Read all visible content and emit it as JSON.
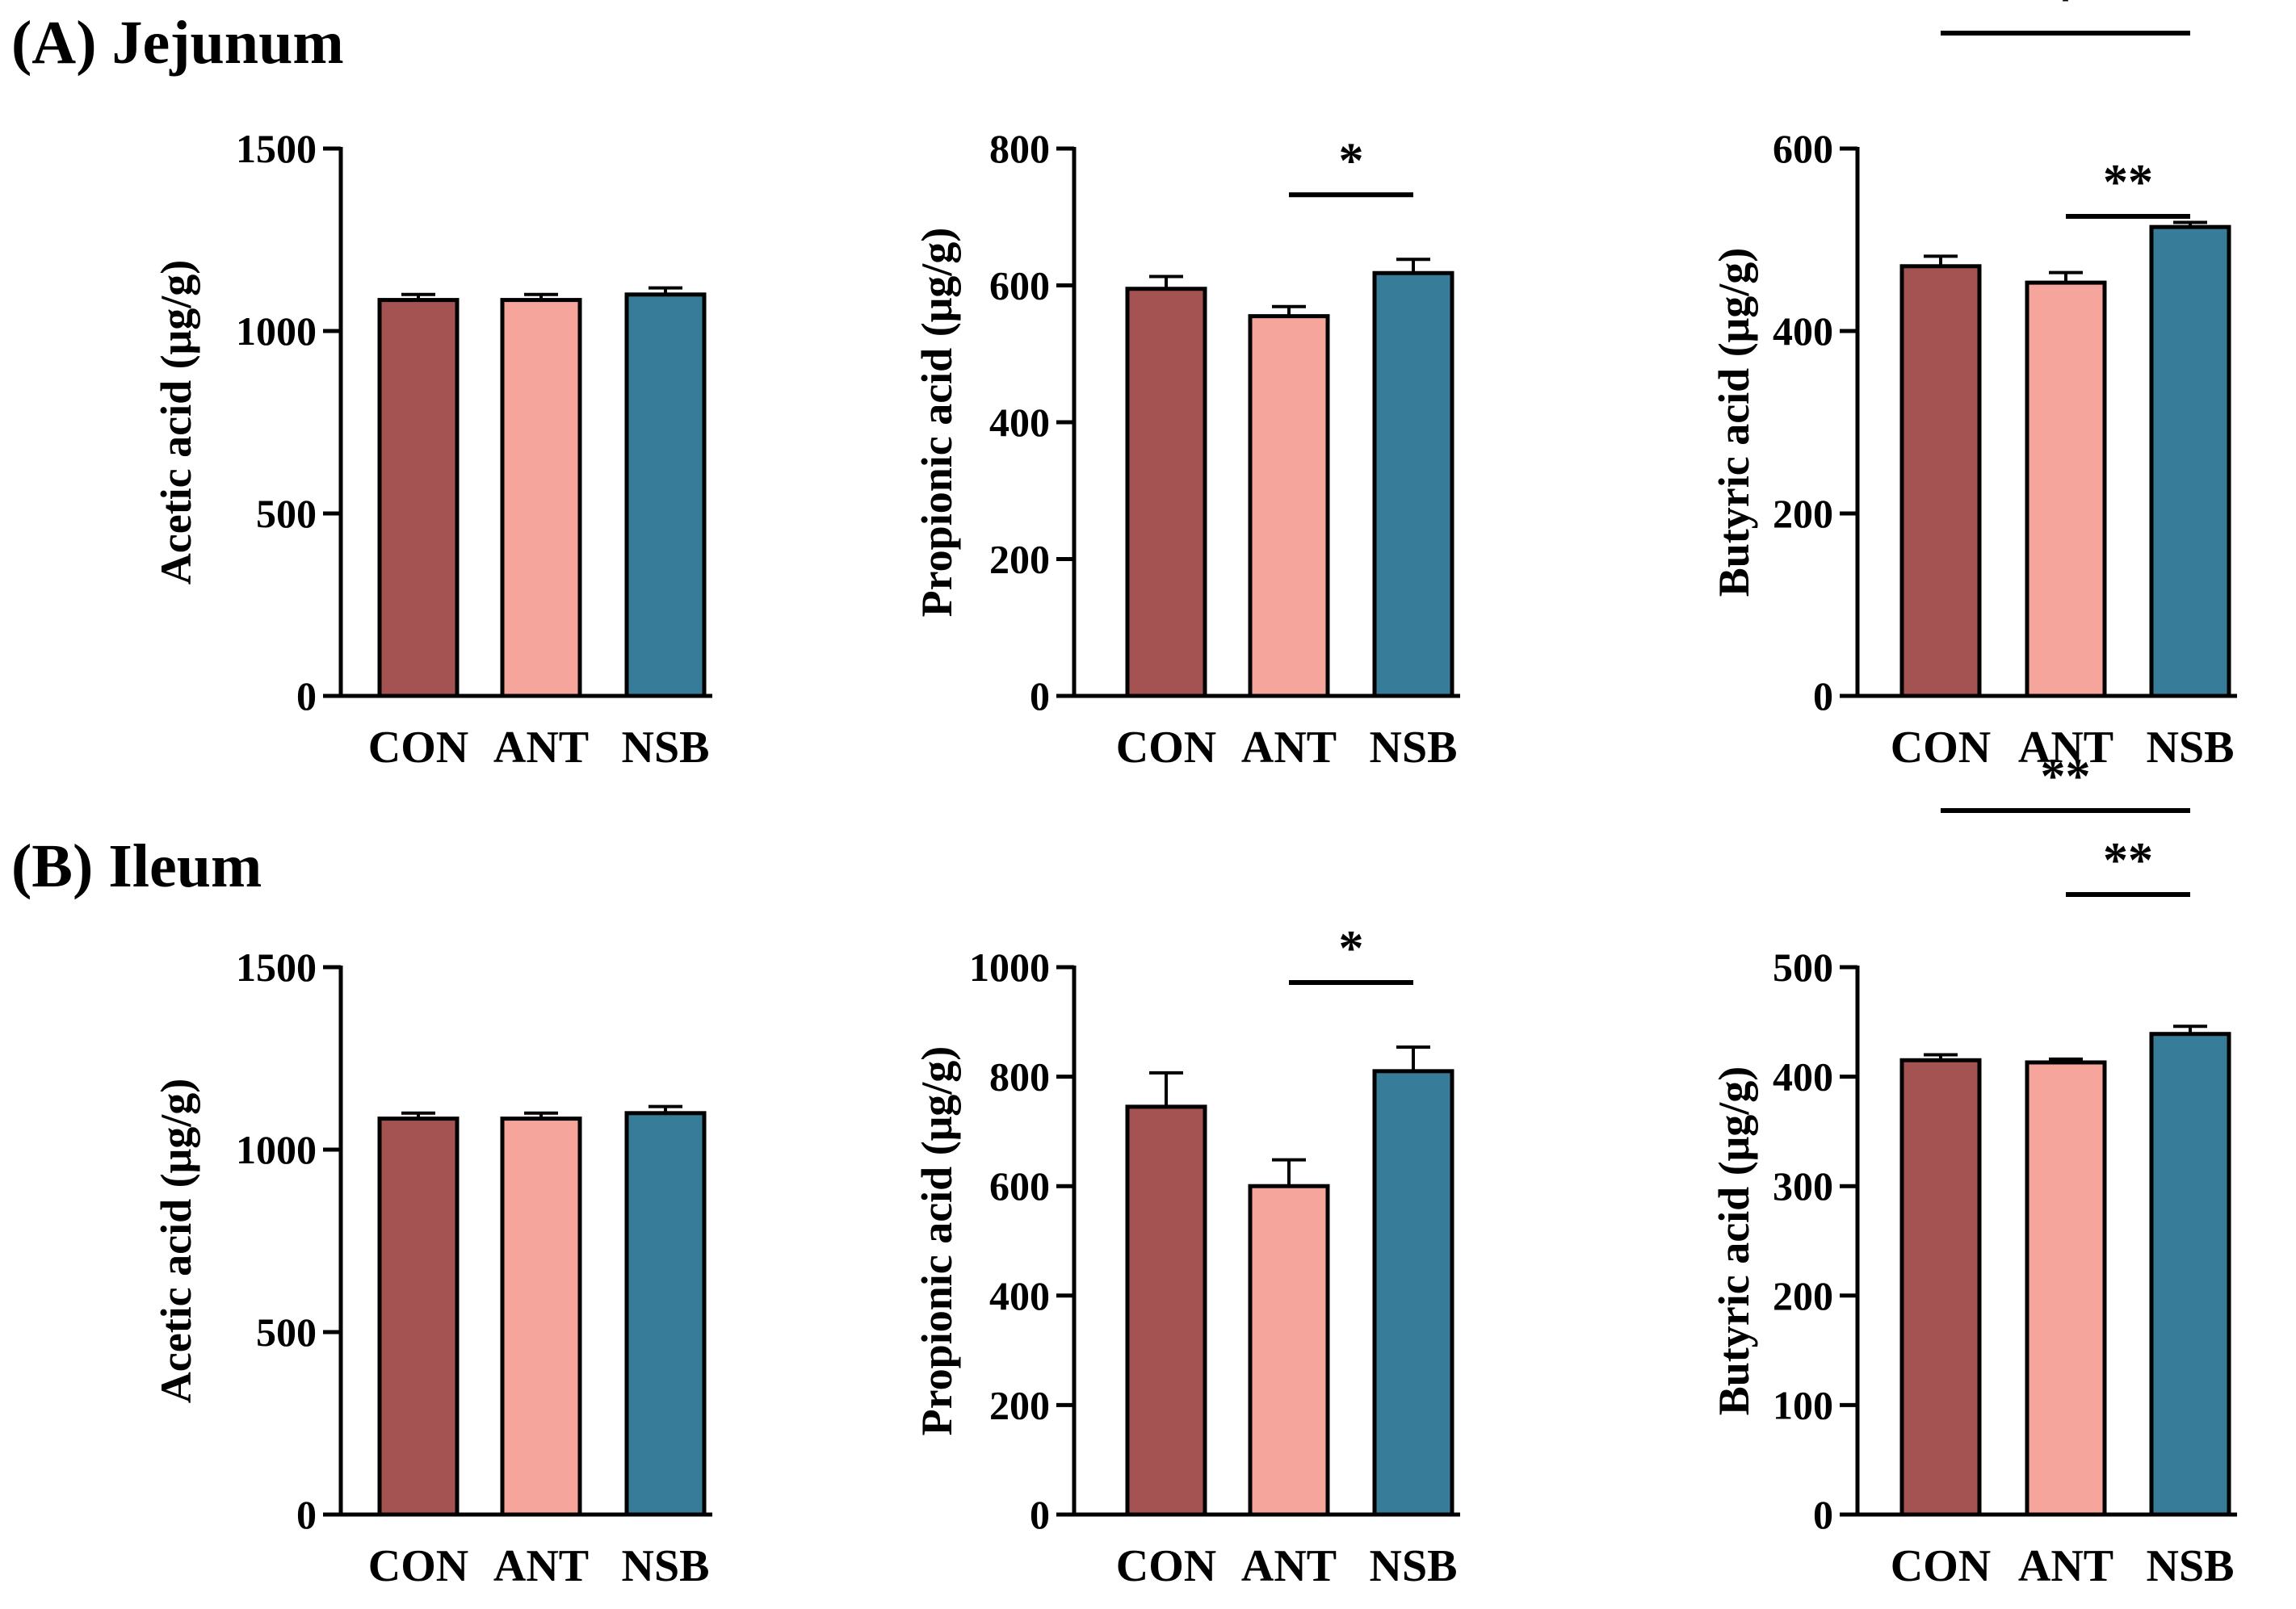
{
  "sections": [
    {
      "label": "(A) Jejunum"
    },
    {
      "label": "(B) Ileum"
    }
  ],
  "colors": {
    "CON": "#a55252",
    "ANT": "#f5a59b",
    "NSB": "#377d99",
    "stroke": "#000000"
  },
  "chart_data": [
    {
      "type": "bar",
      "section": "(A) Jejunum",
      "panel": 1,
      "categories": [
        "CON",
        "ANT",
        "NSB"
      ],
      "values": [
        1085,
        1085,
        1100
      ],
      "errors": [
        15,
        15,
        18
      ],
      "ylabel": "Acetic acid (μg/g)",
      "ylim": [
        0,
        1500
      ],
      "yticks": [
        "0",
        "500",
        "1000",
        "1500"
      ],
      "significance": []
    },
    {
      "type": "bar",
      "section": "(A) Jejunum",
      "panel": 2,
      "categories": [
        "CON",
        "ANT",
        "NSB"
      ],
      "values": [
        595,
        555,
        618
      ],
      "errors": [
        18,
        14,
        20
      ],
      "ylabel": "Propionic acid (μg/g)",
      "ylim": [
        0,
        800
      ],
      "yticks": [
        "0",
        "200",
        "400",
        "600",
        "800"
      ],
      "significance": [
        {
          "from": "ANT",
          "to": "NSB",
          "label": "*"
        }
      ]
    },
    {
      "type": "bar",
      "section": "(A) Jejunum",
      "panel": 3,
      "categories": [
        "CON",
        "ANT",
        "NSB"
      ],
      "values": [
        471,
        453,
        514
      ],
      "errors": [
        11,
        11,
        5
      ],
      "ylabel": "Butyric acid (μg/g)",
      "ylim": [
        0,
        600
      ],
      "yticks": [
        "0",
        "200",
        "400",
        "600"
      ],
      "significance": [
        {
          "from": "CON",
          "to": "NSB",
          "label": "*"
        },
        {
          "from": "ANT",
          "to": "NSB",
          "label": "**"
        }
      ]
    },
    {
      "type": "bar",
      "section": "(B) Ileum",
      "panel": 1,
      "categories": [
        "CON",
        "ANT",
        "NSB"
      ],
      "values": [
        1085,
        1085,
        1100
      ],
      "errors": [
        15,
        15,
        18
      ],
      "ylabel": "Acetic acid (μg/g)",
      "ylim": [
        0,
        1500
      ],
      "yticks": [
        "0",
        "500",
        "1000",
        "1500"
      ],
      "significance": []
    },
    {
      "type": "bar",
      "section": "(B) Ileum",
      "panel": 2,
      "categories": [
        "CON",
        "ANT",
        "NSB"
      ],
      "values": [
        745,
        600,
        810
      ],
      "errors": [
        62,
        48,
        44
      ],
      "ylabel": "Propionic acid (μg/g)",
      "ylim": [
        0,
        1000
      ],
      "yticks": [
        "0",
        "200",
        "400",
        "600",
        "800",
        "1000"
      ],
      "significance": [
        {
          "from": "ANT",
          "to": "NSB",
          "label": "*"
        }
      ]
    },
    {
      "type": "bar",
      "section": "(B) Ileum",
      "panel": 3,
      "categories": [
        "CON",
        "ANT",
        "NSB"
      ],
      "values": [
        415,
        413,
        439
      ],
      "errors": [
        5,
        3,
        7
      ],
      "ylabel": "Butyric acid (μg/g)",
      "ylim": [
        0,
        500
      ],
      "yticks": [
        "0",
        "100",
        "200",
        "300",
        "400",
        "500"
      ],
      "significance": [
        {
          "from": "CON",
          "to": "NSB",
          "label": "**"
        },
        {
          "from": "ANT",
          "to": "NSB",
          "label": "**"
        }
      ]
    }
  ]
}
